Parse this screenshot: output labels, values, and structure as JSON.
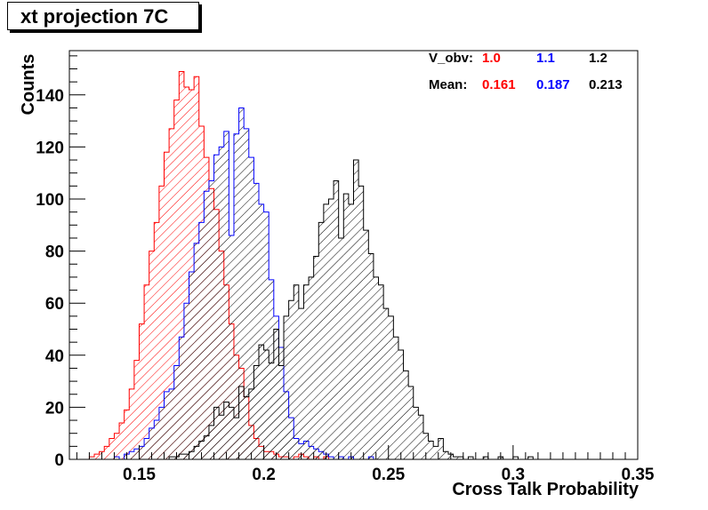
{
  "chart_data": {
    "type": "bar",
    "title": "xt projection 7C",
    "xlabel": "Cross Talk Probability",
    "ylabel": "Counts",
    "xlim": [
      0.122,
      0.35
    ],
    "ylim": [
      0,
      157
    ],
    "grid": false,
    "x_ticks": [
      0.15,
      0.2,
      0.25,
      0.3,
      0.35
    ],
    "x_tick_labels": [
      "0.15",
      "0.2",
      "0.25",
      "0.3",
      "0.35"
    ],
    "y_ticks": [
      0,
      20,
      40,
      60,
      80,
      100,
      120,
      140
    ],
    "y_tick_labels": [
      "0",
      "20",
      "40",
      "60",
      "80",
      "100",
      "120",
      "140"
    ],
    "bin_width": 0.002,
    "legend": {
      "placement": "top-right",
      "header_label": "V_obv:",
      "mean_label": "Mean:",
      "entries": [
        {
          "vobv": "1.0",
          "mean": "0.161",
          "color": "#ff0000"
        },
        {
          "vobv": "1.1",
          "mean": "0.187",
          "color": "#0000ff"
        },
        {
          "vobv": "1.2",
          "mean": "0.213",
          "color": "#000000"
        }
      ]
    },
    "series": [
      {
        "color": "#ff0000",
        "start": 0.128,
        "values": [
          0,
          1,
          2,
          3,
          5,
          8,
          10,
          14,
          19,
          27,
          38,
          52,
          67,
          80,
          91,
          105,
          118,
          127,
          138,
          149,
          143,
          142,
          147,
          128,
          116,
          104,
          96,
          80,
          67,
          52,
          40,
          35,
          24,
          13,
          8,
          5,
          3,
          3,
          2,
          1,
          1,
          0,
          1,
          2,
          1,
          0,
          1,
          0,
          1
        ]
      },
      {
        "color": "#0000ff",
        "start": 0.138,
        "values": [
          0,
          1,
          0,
          2,
          3,
          4,
          5,
          8,
          12,
          15,
          20,
          26,
          27,
          36,
          47,
          60,
          72,
          83,
          91,
          103,
          107,
          117,
          120,
          126,
          86,
          125,
          135,
          127,
          116,
          106,
          98,
          95,
          69,
          55,
          43,
          26,
          16,
          8,
          6,
          7,
          5,
          4,
          3,
          2,
          1,
          0,
          1,
          0,
          1,
          0,
          0,
          0,
          1
        ]
      },
      {
        "color": "#000000",
        "start": 0.16,
        "values": [
          0,
          1,
          1,
          2,
          2,
          3,
          5,
          7,
          9,
          13,
          20,
          17,
          22,
          20,
          16,
          28,
          24,
          27,
          36,
          44,
          42,
          37,
          50,
          36,
          55,
          61,
          67,
          58,
          67,
          70,
          78,
          91,
          98,
          100,
          107,
          85,
          102,
          98,
          115,
          105,
          88,
          79,
          70,
          67,
          58,
          55,
          47,
          42,
          34,
          28,
          20,
          17,
          10,
          7,
          5,
          8,
          3,
          2,
          1,
          1,
          0,
          1,
          0,
          0,
          1,
          0,
          0,
          1,
          0,
          0,
          1,
          0,
          0,
          1
        ]
      }
    ]
  }
}
